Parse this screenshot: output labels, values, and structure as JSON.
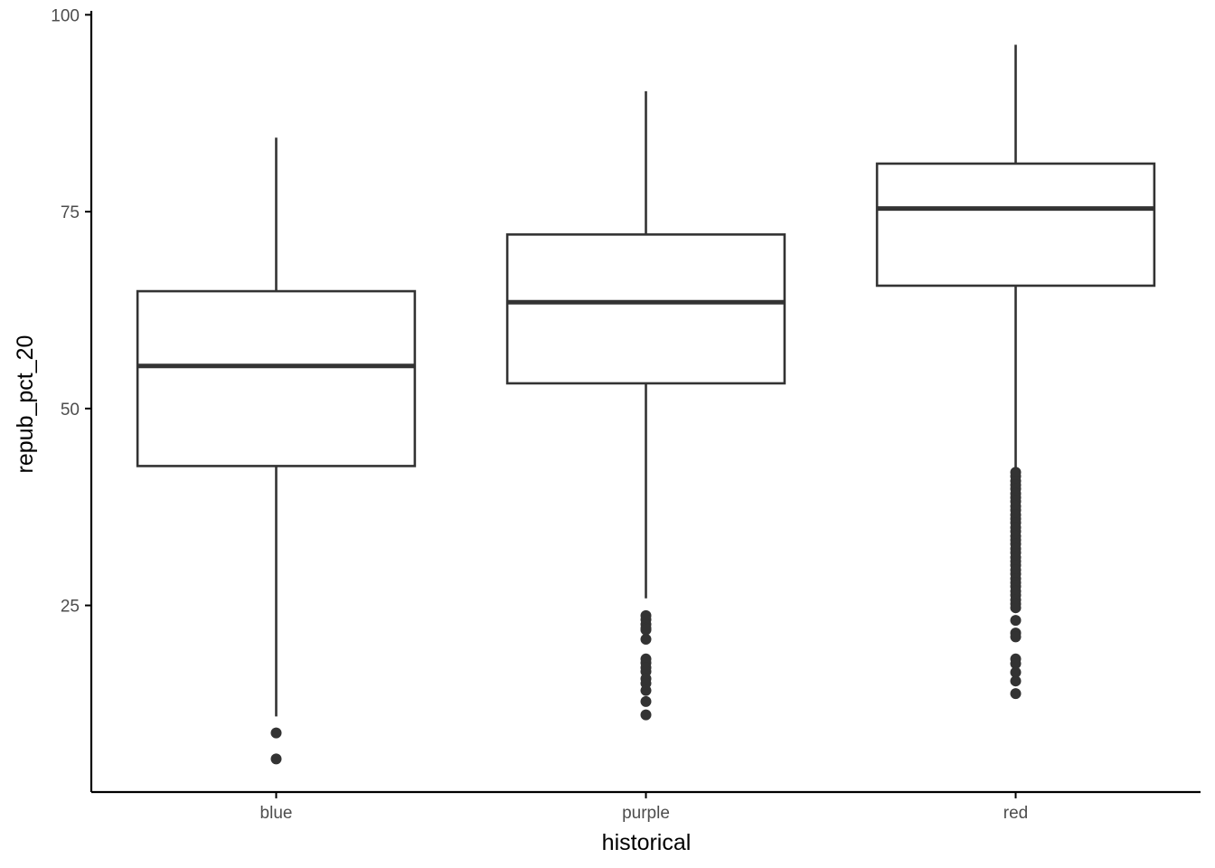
{
  "chart_data": {
    "type": "boxplot",
    "title": "",
    "xlabel": "historical",
    "ylabel": "repub_pct_20",
    "categories": [
      "blue",
      "purple",
      "red"
    ],
    "ylim": [
      1.3,
      100.5
    ],
    "yticks": [
      25,
      50,
      75,
      100
    ],
    "grid": false,
    "boxes": [
      {
        "category": "blue",
        "whisker_low": 10.9,
        "q1": 42.7,
        "median": 55.4,
        "q3": 64.9,
        "whisker_high": 84.4,
        "outliers": [
          8.8,
          5.5
        ]
      },
      {
        "category": "purple",
        "whisker_low": 25.9,
        "q1": 53.2,
        "median": 63.5,
        "q3": 72.1,
        "whisker_high": 90.3,
        "outliers": [
          23.7,
          23.2,
          22.6,
          22.1,
          21.9,
          20.7,
          18.2,
          17.7,
          17.1,
          16.6,
          15.7,
          15.1,
          14.2,
          12.8,
          11.1
        ]
      },
      {
        "category": "red",
        "whisker_low": 42.3,
        "q1": 65.6,
        "median": 75.4,
        "q3": 81.1,
        "whisker_high": 96.2,
        "outliers": [
          41.9,
          41.4,
          40.8,
          40.3,
          39.8,
          39.2,
          38.7,
          38.2,
          37.6,
          37.1,
          36.5,
          36.0,
          35.5,
          34.9,
          34.4,
          33.8,
          33.3,
          32.8,
          32.2,
          31.7,
          31.1,
          30.6,
          30.1,
          29.5,
          29.0,
          28.4,
          27.9,
          27.4,
          26.8,
          26.3,
          25.7,
          25.2,
          24.7,
          23.1,
          21.5,
          21.0,
          18.2,
          17.6,
          16.5,
          15.4,
          13.8
        ]
      }
    ],
    "colors": {
      "line": "#333333",
      "axis": "#000000",
      "outlier": "#333333"
    }
  }
}
